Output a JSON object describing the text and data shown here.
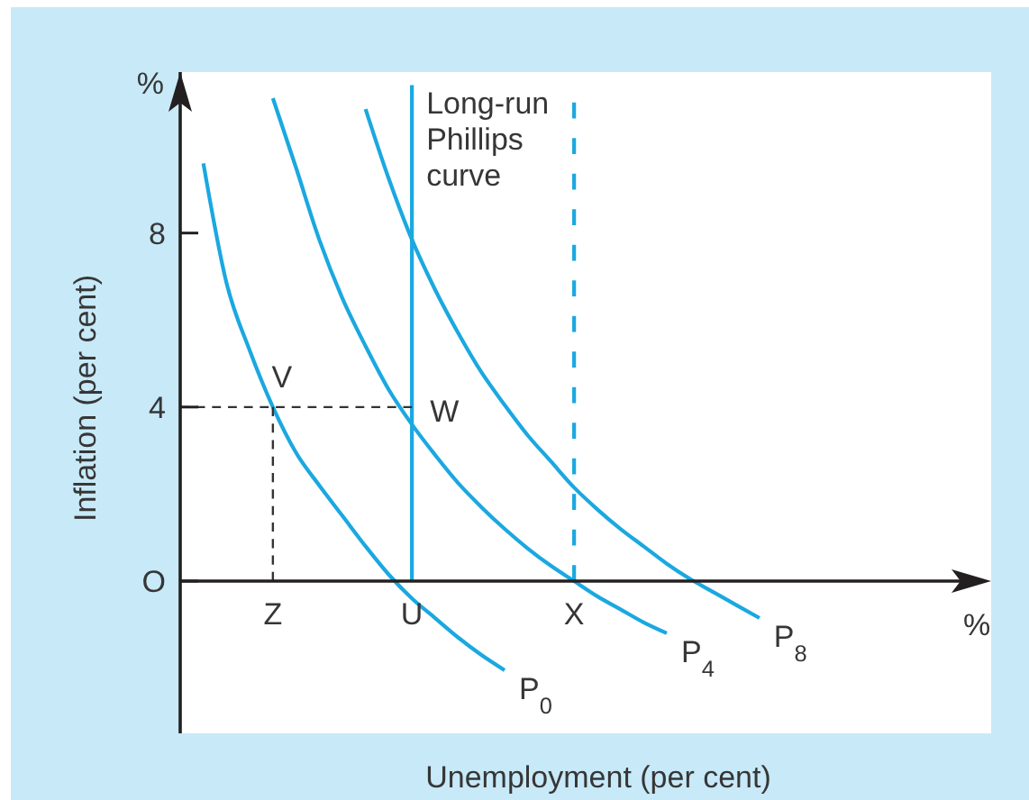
{
  "chart_data": {
    "type": "line",
    "xlabel": "Unemployment (per cent)",
    "ylabel": "Inflation (per cent)",
    "categories": [
      null,
      null,
      null,
      null,
      "Z",
      null,
      null,
      null,
      null,
      null,
      "U",
      null,
      null,
      null,
      null,
      null,
      null,
      "X",
      null,
      null,
      null,
      null,
      null,
      null,
      null,
      null,
      null,
      null,
      null,
      null,
      null,
      null,
      null,
      null,
      null,
      null
    ],
    "series": [
      {
        "name": "P$_{0}$",
        "color": "#1ba8e0",
        "values": [
          null,
          9.6,
          6.85,
          5.3,
          4.0,
          2.95,
          2.2,
          1.5,
          0.8,
          0.15,
          -0.4,
          -0.85,
          -1.3,
          -1.7,
          -2.05,
          null,
          null,
          null,
          null,
          null,
          null,
          null,
          null,
          null,
          null,
          null,
          null,
          null,
          null,
          null,
          null,
          null,
          null,
          null,
          null,
          null
        ]
      },
      {
        "name": "P$_{4}$",
        "color": "#1ba8e0",
        "values": [
          null,
          null,
          null,
          null,
          11.1,
          9.5,
          7.85,
          6.5,
          5.4,
          4.4,
          3.6,
          2.9,
          2.25,
          1.7,
          1.2,
          0.75,
          0.35,
          0.0,
          -0.35,
          -0.65,
          -0.95,
          -1.2,
          null,
          null,
          null,
          null,
          null,
          null,
          null,
          null,
          null,
          null,
          null,
          null,
          null,
          null
        ]
      },
      {
        "name": "P$_{8}$",
        "color": "#1ba8e0",
        "values": [
          null,
          null,
          null,
          null,
          null,
          null,
          null,
          null,
          10.85,
          9.25,
          7.85,
          6.7,
          5.7,
          4.8,
          4.05,
          3.35,
          2.75,
          2.15,
          1.65,
          1.2,
          0.8,
          0.4,
          0.05,
          -0.25,
          -0.55,
          -0.85,
          null,
          null,
          null,
          null,
          null,
          null,
          null,
          null,
          null,
          null
        ]
      },
      {
        "name": "Long-run Phillips curve",
        "color": "#1ba8e0",
        "x": [
          "U",
          "U"
        ],
        "values": [
          0,
          11.4
        ]
      },
      {
        "color": "#1ba8e0",
        "line_style": "dashed",
        "x": [
          "X",
          "X"
        ],
        "values": [
          0,
          11.0
        ]
      },
      {
        "color": "#333333",
        "line_style": "dashed",
        "values": [
          4,
          4,
          4,
          4,
          4,
          4,
          4,
          4,
          4,
          4,
          4,
          null,
          null,
          null,
          null,
          null,
          null,
          null,
          null,
          null,
          null,
          null,
          null,
          null,
          null,
          null,
          null,
          null,
          null,
          null,
          null,
          null,
          null,
          null,
          null,
          null
        ]
      },
      {
        "color": "#333333",
        "line_style": "dashed",
        "x": [
          "Z",
          "Z"
        ],
        "values": [
          4,
          0
        ]
      }
    ],
    "ylim": [
      -3.5,
      11.7
    ],
    "yticks": [
      {
        "value": 0,
        "label": "O"
      },
      4,
      8
    ],
    "marker": "none",
    "line_style": "solid",
    "annotations": [
      "%",
      "%",
      {
        "text": "V",
        "x": "Z",
        "y": 4
      },
      {
        "text": "W",
        "x": "U",
        "y": 4
      }
    ]
  }
}
